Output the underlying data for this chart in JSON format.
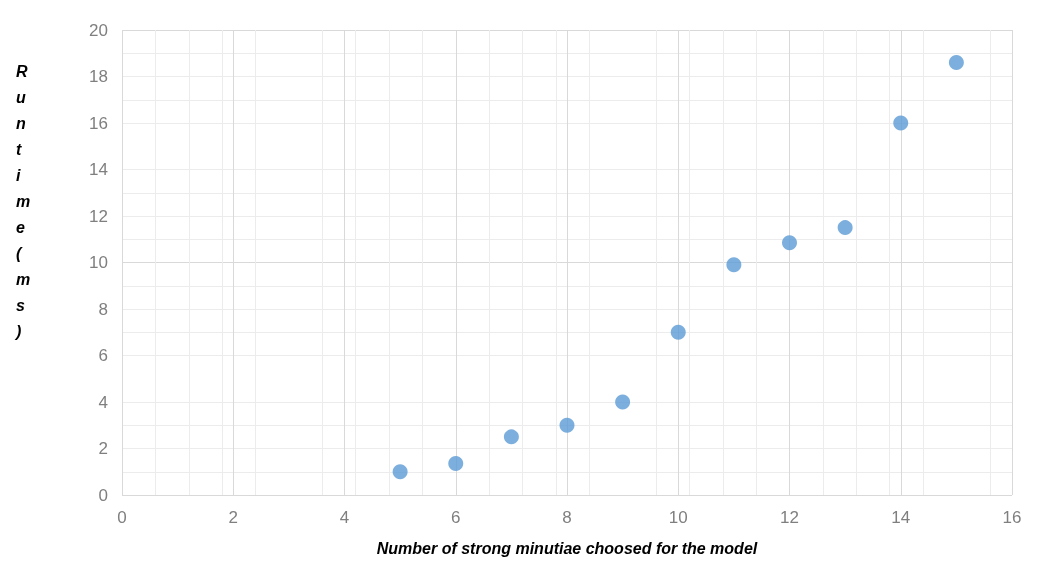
{
  "chart_data": {
    "type": "scatter",
    "xlabel": "Number of strong minutiae choosed for the model",
    "ylabel": "Runtime(ms)",
    "x": [
      5,
      6,
      7,
      8,
      9,
      10,
      11,
      12,
      13,
      14,
      15
    ],
    "series": [
      {
        "color": "#5b9bd5",
        "values": [
          1.0,
          1.35,
          2.5,
          3.0,
          4.0,
          7.0,
          9.9,
          10.85,
          11.5,
          16.0,
          18.6
        ]
      }
    ],
    "xlim": [
      0,
      16
    ],
    "xticks": [
      0,
      2,
      4,
      6,
      8,
      10,
      12,
      14,
      16
    ],
    "ylim": [
      0,
      20
    ],
    "yticks": [
      0,
      2,
      4,
      6,
      8,
      10,
      12,
      14,
      16,
      18,
      20
    ],
    "grid": true,
    "marker": "circle"
  }
}
